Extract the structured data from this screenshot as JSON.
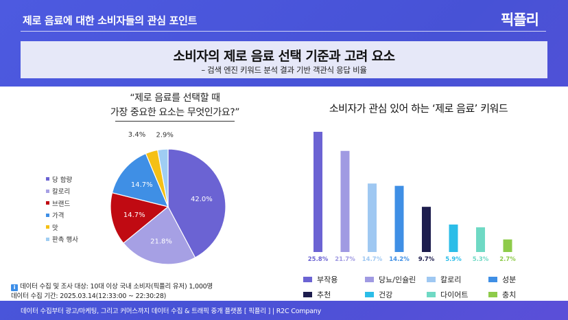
{
  "header": {
    "title": "제로 음료에 대한 소비자들의 관심 포인트",
    "logo": "픽플리"
  },
  "title_band": {
    "title": "소비자의 제로 음료 선택 기준과 고려 요소",
    "subtitle": "– 검색 엔진 키워드 분석 결과 기반 객관식 응답 비율"
  },
  "footer": {
    "text": "데이터 수집부터 광고/마케팅, 그리고 커머스까지 데이터 수집 & 트래픽 중개 플랫폼 [ 픽플리 ]  |  R2C Company"
  },
  "note": {
    "line1": "데이터 수집 및 조사 대상: 10대 이상 국내 소비자(픽플리 유저) 1,000명",
    "line2": "데이터 수집 기간: 2025.03.14(12:33:00 ~ 22:30:28)"
  },
  "chart_data": [
    {
      "type": "pie",
      "title_line1": "“제로 음료를 선택할 때",
      "title_line2": "가장 중요한 요소는 무엇인가요?”",
      "labels": [
        "당 함량",
        "칼로리",
        "브랜드",
        "가격",
        "맛",
        "판촉 행사"
      ],
      "values": [
        42.0,
        21.8,
        14.7,
        14.7,
        3.4,
        2.9
      ],
      "value_labels": [
        "42.0%",
        "21.8%",
        "14.7%",
        "14.7%",
        "3.4%",
        "2.9%"
      ],
      "colors": [
        "#6b63d3",
        "#a6a0e4",
        "#c00a12",
        "#3f8fe5",
        "#f5c016",
        "#9fcdf3"
      ],
      "legend_position": "left"
    },
    {
      "type": "bar",
      "title": "소비자가 관심 있어 하는 ‘제로 음료’ 키워드",
      "categories": [
        "부작용",
        "당뇨/인슐린",
        "칼로리",
        "성분",
        "추천",
        "건강",
        "다이어트",
        "충치"
      ],
      "values": [
        25.8,
        21.7,
        14.7,
        14.2,
        9.7,
        5.9,
        5.3,
        2.7
      ],
      "value_labels": [
        "25.8%",
        "21.7%",
        "14.7%",
        "14.2%",
        "9.7%",
        "5.9%",
        "5.3%",
        "2.7%"
      ],
      "colors": [
        "#6b63d3",
        "#a09ae2",
        "#9fc8f2",
        "#3f8fe5",
        "#1d1d4d",
        "#2bbde8",
        "#6fd9c4",
        "#8ecb4a"
      ],
      "ylim": [
        0,
        28
      ],
      "grid": false,
      "legend_position": "bottom"
    }
  ]
}
